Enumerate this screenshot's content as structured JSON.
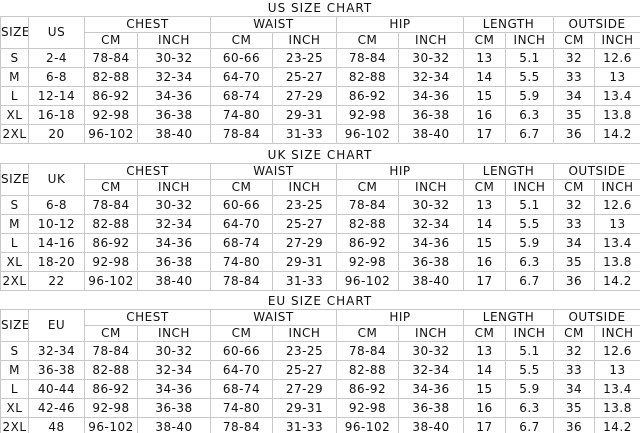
{
  "tables": [
    {
      "title": "US SIZE CHART",
      "size_label": "SIZE",
      "region_label": "US",
      "groups": [
        {
          "name": "CHEST",
          "units": [
            "CM",
            "INCH"
          ]
        },
        {
          "name": "WAIST",
          "units": [
            "CM",
            "INCH"
          ]
        },
        {
          "name": "HIP",
          "units": [
            "CM",
            "INCH"
          ]
        },
        {
          "name": "LENGTH",
          "units": [
            "CM",
            "INCH"
          ]
        },
        {
          "name": "OUTSIDE",
          "units": [
            "CM",
            "INCH"
          ]
        }
      ],
      "rows": [
        [
          "S",
          "2-4",
          "78-84",
          "30-32",
          "60-66",
          "23-25",
          "78-84",
          "30-32",
          "13",
          "5.1",
          "32",
          "12.6"
        ],
        [
          "M",
          "6-8",
          "82-88",
          "32-34",
          "64-70",
          "25-27",
          "82-88",
          "32-34",
          "14",
          "5.5",
          "33",
          "13"
        ],
        [
          "L",
          "12-14",
          "86-92",
          "34-36",
          "68-74",
          "27-29",
          "86-92",
          "34-36",
          "15",
          "5.9",
          "34",
          "13.4"
        ],
        [
          "XL",
          "16-18",
          "92-98",
          "36-38",
          "74-80",
          "29-31",
          "92-98",
          "36-38",
          "16",
          "6.3",
          "35",
          "13.8"
        ],
        [
          "2XL",
          "20",
          "96-102",
          "38-40",
          "78-84",
          "31-33",
          "96-102",
          "38-40",
          "17",
          "6.7",
          "36",
          "14.2"
        ]
      ]
    },
    {
      "title": "UK SIZE CHART",
      "size_label": "SIZE",
      "region_label": "UK",
      "groups": [
        {
          "name": "CHEST",
          "units": [
            "CM",
            "INCH"
          ]
        },
        {
          "name": "WAIST",
          "units": [
            "CM",
            "INCH"
          ]
        },
        {
          "name": "HIP",
          "units": [
            "CM",
            "INCH"
          ]
        },
        {
          "name": "LENGTH",
          "units": [
            "CM",
            "INCH"
          ]
        },
        {
          "name": "OUTSIDE",
          "units": [
            "CM",
            "INCH"
          ]
        }
      ],
      "rows": [
        [
          "S",
          "6-8",
          "78-84",
          "30-32",
          "60-66",
          "23-25",
          "78-84",
          "30-32",
          "13",
          "5.1",
          "32",
          "12.6"
        ],
        [
          "M",
          "10-12",
          "82-88",
          "32-34",
          "64-70",
          "25-27",
          "82-88",
          "32-34",
          "14",
          "5.5",
          "33",
          "13"
        ],
        [
          "L",
          "14-16",
          "86-92",
          "34-36",
          "68-74",
          "27-29",
          "86-92",
          "34-36",
          "15",
          "5.9",
          "34",
          "13.4"
        ],
        [
          "XL",
          "18-20",
          "92-98",
          "36-38",
          "74-80",
          "29-31",
          "92-98",
          "36-38",
          "16",
          "6.3",
          "35",
          "13.8"
        ],
        [
          "2XL",
          "22",
          "96-102",
          "38-40",
          "78-84",
          "31-33",
          "96-102",
          "38-40",
          "17",
          "6.7",
          "36",
          "14.2"
        ]
      ]
    },
    {
      "title": "EU SIZE CHART",
      "size_label": "SIZE",
      "region_label": "EU",
      "groups": [
        {
          "name": "CHEST",
          "units": [
            "CM",
            "INCH"
          ]
        },
        {
          "name": "WAIST",
          "units": [
            "CM",
            "INCH"
          ]
        },
        {
          "name": "HIP",
          "units": [
            "CM",
            "INCH"
          ]
        },
        {
          "name": "LENGTH",
          "units": [
            "CM",
            "INCH"
          ]
        },
        {
          "name": "OUTSIDE",
          "units": [
            "CM",
            "INCH"
          ]
        }
      ],
      "rows": [
        [
          "S",
          "32-34",
          "78-84",
          "30-32",
          "60-66",
          "23-25",
          "78-84",
          "30-32",
          "13",
          "5.1",
          "32",
          "12.6"
        ],
        [
          "M",
          "36-38",
          "82-88",
          "32-34",
          "64-70",
          "25-27",
          "82-88",
          "32-34",
          "14",
          "5.5",
          "33",
          "13"
        ],
        [
          "L",
          "40-44",
          "86-92",
          "34-36",
          "68-74",
          "27-29",
          "86-92",
          "34-36",
          "15",
          "5.9",
          "34",
          "13.4"
        ],
        [
          "XL",
          "42-46",
          "92-98",
          "36-38",
          "74-80",
          "29-31",
          "92-98",
          "36-38",
          "16",
          "6.3",
          "35",
          "13.8"
        ],
        [
          "2XL",
          "48",
          "96-102",
          "38-40",
          "78-84",
          "31-33",
          "96-102",
          "38-40",
          "17",
          "6.7",
          "36",
          "14.2"
        ]
      ]
    }
  ]
}
